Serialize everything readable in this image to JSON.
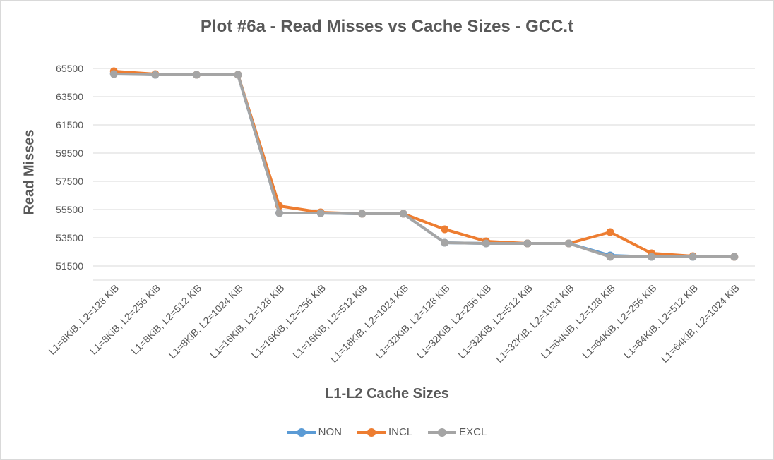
{
  "chart_data": {
    "type": "line",
    "title": "Plot #6a - Read Misses vs Cache Sizes - GCC.t",
    "xlabel": "L1-L2 Cache Sizes",
    "ylabel": "Read Misses",
    "ylim": [
      50500,
      66500
    ],
    "yticks": [
      51500,
      53500,
      55500,
      57500,
      59500,
      61500,
      63500,
      65500
    ],
    "grid": true,
    "legend_position": "bottom",
    "categories": [
      "L1=8KiB, L2=128 KiB",
      "L1=8KiB, L2=256 KiB",
      "L1=8KiB, L2=512 KiB",
      "L1=8KiB, L2=1024 KiB",
      "L1=16KiB, L2=128 KiB",
      "L1=16KiB, L2=256 KiB",
      "L1=16KiB, L2=512 KiB",
      "L1=16KiB, L2=1024 KiB",
      "L1=32KiB, L2=128 KiB",
      "L1=32KiB, L2=256 KiB",
      "L1=32KiB, L2=512 KiB",
      "L1=32KiB, L2=1024 KiB",
      "L1=64KiB, L2=128 KiB",
      "L1=64KiB, L2=256 KiB",
      "L1=64KiB, L2=512 KiB",
      "L1=64KiB, L2=1024 KiB"
    ],
    "series": [
      {
        "name": "NON",
        "color": "#5b9bd5",
        "values": [
          65150,
          65050,
          65050,
          65050,
          55250,
          55250,
          55200,
          55200,
          53150,
          53100,
          53100,
          53100,
          52250,
          52150,
          52150,
          52150
        ]
      },
      {
        "name": "INCL",
        "color": "#ed7d31",
        "values": [
          65300,
          65100,
          65050,
          65050,
          55750,
          55300,
          55200,
          55200,
          54100,
          53250,
          53100,
          53100,
          53900,
          52400,
          52200,
          52150
        ]
      },
      {
        "name": "EXCL",
        "color": "#a5a5a5",
        "values": [
          65100,
          65050,
          65050,
          65050,
          55250,
          55250,
          55200,
          55200,
          53150,
          53100,
          53100,
          53100,
          52150,
          52150,
          52150,
          52150
        ]
      }
    ]
  }
}
